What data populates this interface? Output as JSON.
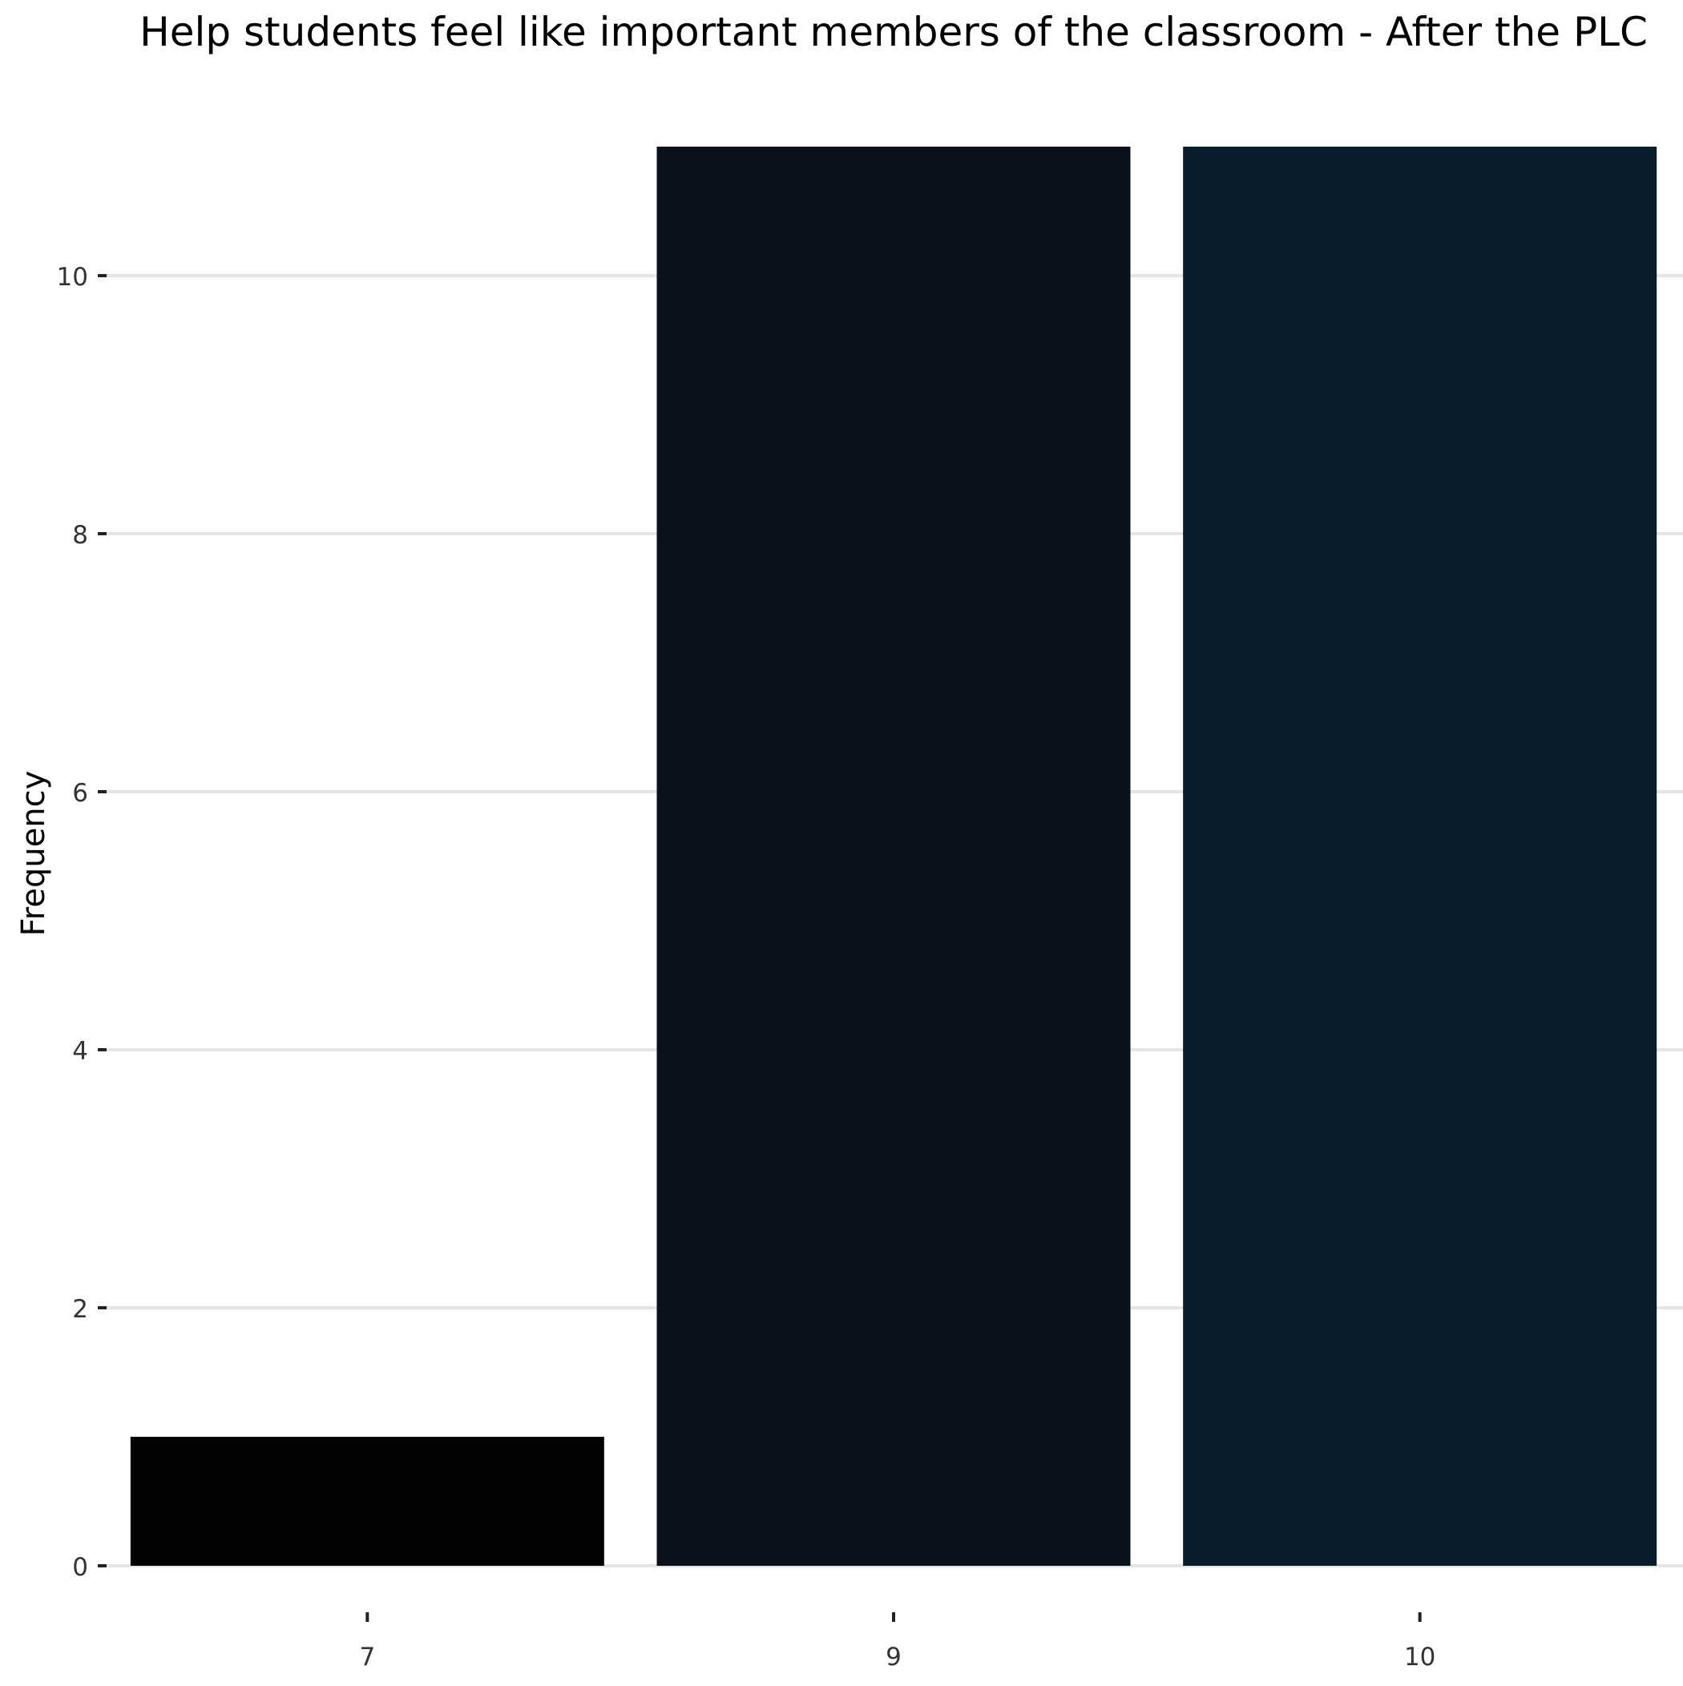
{
  "chart_data": {
    "type": "bar",
    "title": "Help students feel like important members of the classroom - After the PLC",
    "xlabel": "",
    "ylabel": "Frequency",
    "categories": [
      "7",
      "9",
      "10"
    ],
    "values": [
      1,
      11,
      11
    ],
    "colors": [
      "#030303",
      "#0a111a",
      "#0a1d2a"
    ],
    "ylim": [
      0,
      11
    ],
    "yticks": [
      0,
      2,
      4,
      6,
      8,
      10
    ],
    "grid": "horizontal-major",
    "legend": "none"
  }
}
